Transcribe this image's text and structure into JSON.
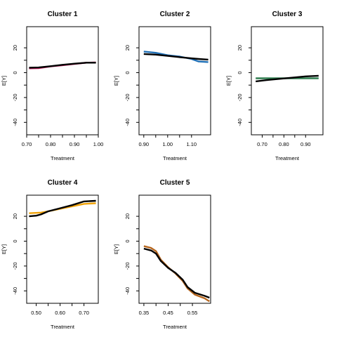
{
  "chart_data": [
    {
      "type": "line",
      "title": "Cluster 1",
      "xlabel": "Treatment",
      "ylabel": "E[Y]",
      "xlim": [
        0.7,
        1.0
      ],
      "ylim": [
        -50,
        37
      ],
      "xticks": [
        0.7,
        0.8,
        0.9,
        1.0
      ],
      "xtick_labels": [
        "0.70",
        "0.80",
        "0.90",
        "1.00"
      ],
      "yticks": [
        -40,
        -20,
        0,
        20
      ],
      "ytick_labels": [
        "-40",
        "-20",
        "0",
        "20"
      ],
      "grid": false,
      "series": [
        {
          "color": "#c2185b",
          "points": [
            [
              0.71,
              3.5
            ],
            [
              0.75,
              3.6
            ],
            [
              0.8,
              5.0
            ],
            [
              0.85,
              6.0
            ],
            [
              0.9,
              7.0
            ],
            [
              0.95,
              8.0
            ],
            [
              0.99,
              8.2
            ]
          ]
        },
        {
          "color": "#000000",
          "points": [
            [
              0.71,
              4.0
            ],
            [
              0.75,
              4.2
            ],
            [
              0.8,
              5.2
            ],
            [
              0.85,
              6.3
            ],
            [
              0.9,
              7.2
            ],
            [
              0.95,
              8.0
            ],
            [
              0.99,
              8.0
            ]
          ]
        }
      ]
    },
    {
      "type": "line",
      "title": "Cluster 2",
      "xlabel": "Treatment",
      "ylabel": "E[Y]",
      "xlim": [
        0.88,
        1.18
      ],
      "ylim": [
        -50,
        37
      ],
      "xticks": [
        0.9,
        1.0,
        1.1
      ],
      "xtick_labels": [
        "0.90",
        "1.00",
        "1.10"
      ],
      "yticks": [
        -40,
        -20,
        0,
        20
      ],
      "ytick_labels": [
        "-40",
        "-20",
        "0",
        "20"
      ],
      "grid": false,
      "series": [
        {
          "color": "#1f6fb5",
          "points": [
            [
              0.9,
              17.0
            ],
            [
              0.95,
              16.0
            ],
            [
              1.0,
              14.0
            ],
            [
              1.05,
              13.0
            ],
            [
              1.1,
              11.0
            ],
            [
              1.13,
              9.0
            ],
            [
              1.17,
              8.5
            ]
          ]
        },
        {
          "color": "#000000",
          "points": [
            [
              0.9,
              15.0
            ],
            [
              0.95,
              14.5
            ],
            [
              1.0,
              13.5
            ],
            [
              1.05,
              12.5
            ],
            [
              1.1,
              11.5
            ],
            [
              1.13,
              11.0
            ],
            [
              1.17,
              10.5
            ]
          ]
        }
      ]
    },
    {
      "type": "line",
      "title": "Cluster 3",
      "xlabel": "Treatment",
      "ylabel": "E[Y]",
      "xlim": [
        0.65,
        0.98
      ],
      "ylim": [
        -50,
        37
      ],
      "xticks": [
        0.7,
        0.8,
        0.9
      ],
      "xtick_labels": [
        "0.70",
        "0.80",
        "0.90"
      ],
      "yticks": [
        -40,
        -20,
        0,
        20
      ],
      "ytick_labels": [
        "-40",
        "-20",
        "0",
        "20"
      ],
      "grid": false,
      "series": [
        {
          "color": "#2e7d4f",
          "points": [
            [
              0.67,
              -4.5
            ],
            [
              0.75,
              -4.5
            ],
            [
              0.85,
              -4.5
            ],
            [
              0.96,
              -4.5
            ]
          ]
        },
        {
          "color": "#000000",
          "points": [
            [
              0.67,
              -7.0
            ],
            [
              0.72,
              -6.0
            ],
            [
              0.78,
              -5.0
            ],
            [
              0.84,
              -4.0
            ],
            [
              0.9,
              -3.0
            ],
            [
              0.96,
              -2.5
            ]
          ]
        }
      ]
    },
    {
      "type": "line",
      "title": "Cluster 4",
      "xlabel": "Treatment",
      "ylabel": "E[Y]",
      "xlim": [
        0.46,
        0.76
      ],
      "ylim": [
        -50,
        37
      ],
      "xticks": [
        0.5,
        0.6,
        0.7
      ],
      "xtick_labels": [
        "0.50",
        "0.60",
        "0.70"
      ],
      "yticks": [
        -40,
        -20,
        0,
        20
      ],
      "ytick_labels": [
        "-40",
        "-20",
        "0",
        "20"
      ],
      "grid": false,
      "series": [
        {
          "color": "#f0a30a",
          "points": [
            [
              0.47,
              22.5
            ],
            [
              0.52,
              23.0
            ],
            [
              0.55,
              24.0
            ],
            [
              0.6,
              26.0
            ],
            [
              0.65,
              28.0
            ],
            [
              0.7,
              30.0
            ],
            [
              0.75,
              30.5
            ]
          ]
        },
        {
          "color": "#000000",
          "points": [
            [
              0.47,
              20.0
            ],
            [
              0.5,
              20.5
            ],
            [
              0.52,
              21.5
            ],
            [
              0.55,
              24.0
            ],
            [
              0.6,
              26.5
            ],
            [
              0.65,
              29.0
            ],
            [
              0.7,
              32.0
            ],
            [
              0.75,
              32.5
            ]
          ]
        }
      ]
    },
    {
      "type": "line",
      "title": "Cluster 5",
      "xlabel": "Treatment",
      "ylabel": "E[Y]",
      "xlim": [
        0.33,
        0.625
      ],
      "ylim": [
        -50,
        37
      ],
      "xticks": [
        0.35,
        0.45,
        0.55
      ],
      "xtick_labels": [
        "0.35",
        "0.45",
        "0.55"
      ],
      "yticks": [
        -40,
        -20,
        0,
        20
      ],
      "ytick_labels": [
        "-40",
        "-20",
        "0",
        "20"
      ],
      "grid": false,
      "series": [
        {
          "color": "#b5651d",
          "points": [
            [
              0.35,
              -4.0
            ],
            [
              0.38,
              -5.5
            ],
            [
              0.4,
              -8.0
            ],
            [
              0.42,
              -15.0
            ],
            [
              0.45,
              -21.0
            ],
            [
              0.48,
              -26.0
            ],
            [
              0.51,
              -32.0
            ],
            [
              0.53,
              -38.0
            ],
            [
              0.56,
              -43.0
            ],
            [
              0.6,
              -46.0
            ],
            [
              0.62,
              -48.5
            ]
          ]
        },
        {
          "color": "#000000",
          "points": [
            [
              0.35,
              -6.0
            ],
            [
              0.38,
              -7.5
            ],
            [
              0.4,
              -10.0
            ],
            [
              0.42,
              -16.0
            ],
            [
              0.45,
              -21.5
            ],
            [
              0.48,
              -25.5
            ],
            [
              0.51,
              -31.0
            ],
            [
              0.53,
              -37.0
            ],
            [
              0.56,
              -41.5
            ],
            [
              0.6,
              -44.0
            ],
            [
              0.62,
              -45.5
            ]
          ]
        }
      ]
    }
  ]
}
